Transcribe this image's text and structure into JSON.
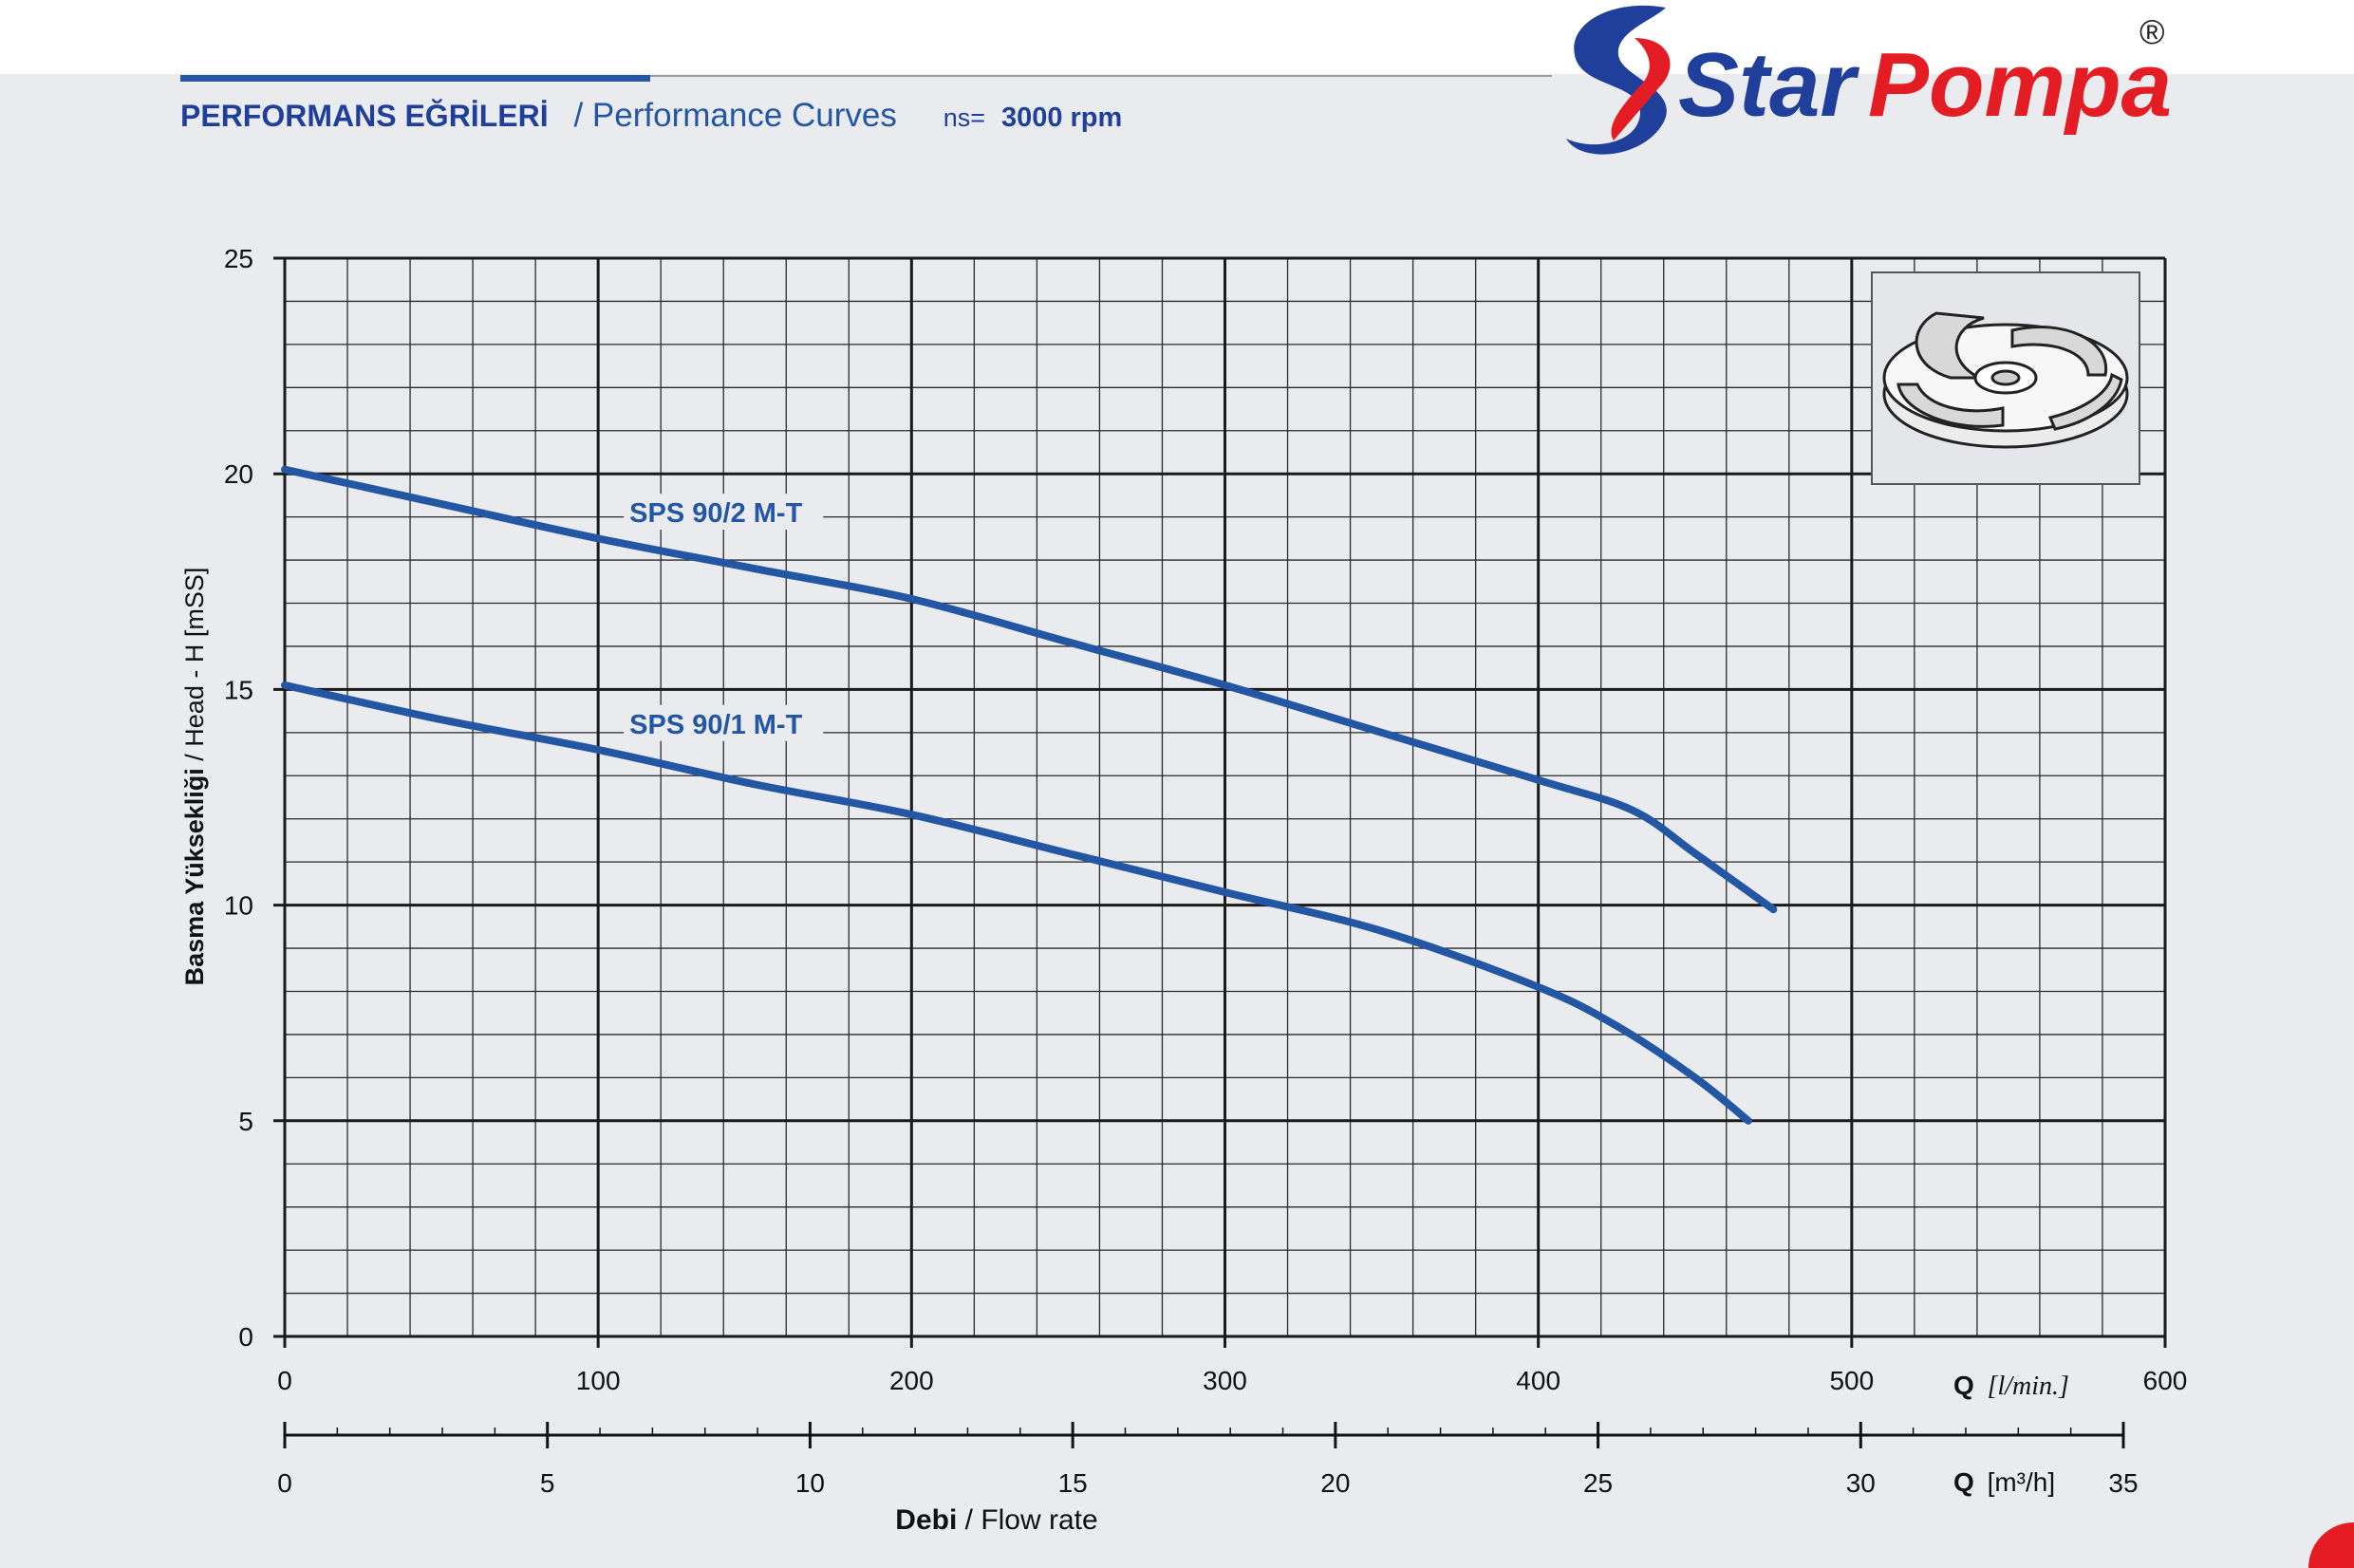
{
  "header": {
    "title_tr": "PERFORMANS EĞRİLERİ",
    "title_en": "/ Performance Curves",
    "speed_prefix": "ns=",
    "speed_value": "3000 rpm"
  },
  "brand": {
    "name_part1": "Star",
    "name_part2": "Pompa",
    "registered": "®",
    "color_blue": "#1f3f9a",
    "color_red": "#e41c23"
  },
  "colors": {
    "accent_blue": "#2356a3",
    "curve": "#2356a3",
    "grid_major": "#1a1a1a",
    "grid_minor": "#2a2a2a"
  },
  "chart_data": {
    "type": "line",
    "ylabel": "Basma Yüksekliği / Head - H [mSS]",
    "ylabel_bold": "Basma Yüksekliği",
    "ylabel_rest": " / Head - H [mSS]",
    "ylim": [
      0,
      25
    ],
    "yticks": [
      "0",
      "5",
      "10",
      "15",
      "20",
      "25"
    ],
    "xlim": [
      0,
      600
    ],
    "xticks": [
      "0",
      "100",
      "200",
      "300",
      "400",
      "500",
      "600"
    ],
    "x_unit_q": "Q",
    "x_unit": "[l/min.]",
    "x2lim": [
      0,
      35
    ],
    "x2ticks": [
      "0",
      "5",
      "10",
      "15",
      "20",
      "25",
      "30",
      "35"
    ],
    "x2_unit_q": "Q",
    "x2_unit": "[m³/h]",
    "xlabel_bold": "Debi",
    "xlabel_rest": " / Flow rate",
    "grid": true,
    "series": [
      {
        "name": "SPS 90/2 M-T",
        "x": [
          0,
          50,
          100,
          150,
          200,
          250,
          300,
          350,
          400,
          430,
          450,
          475
        ],
        "y": [
          20.1,
          19.3,
          18.5,
          17.8,
          17.1,
          16.1,
          15.1,
          14.0,
          12.9,
          12.2,
          11.2,
          9.9
        ]
      },
      {
        "name": "SPS 90/1 M-T",
        "x": [
          0,
          50,
          100,
          150,
          200,
          250,
          300,
          350,
          400,
          425,
          450,
          467
        ],
        "y": [
          15.1,
          14.3,
          13.6,
          12.8,
          12.1,
          11.2,
          10.3,
          9.4,
          8.1,
          7.2,
          6.0,
          5.0
        ]
      }
    ]
  }
}
